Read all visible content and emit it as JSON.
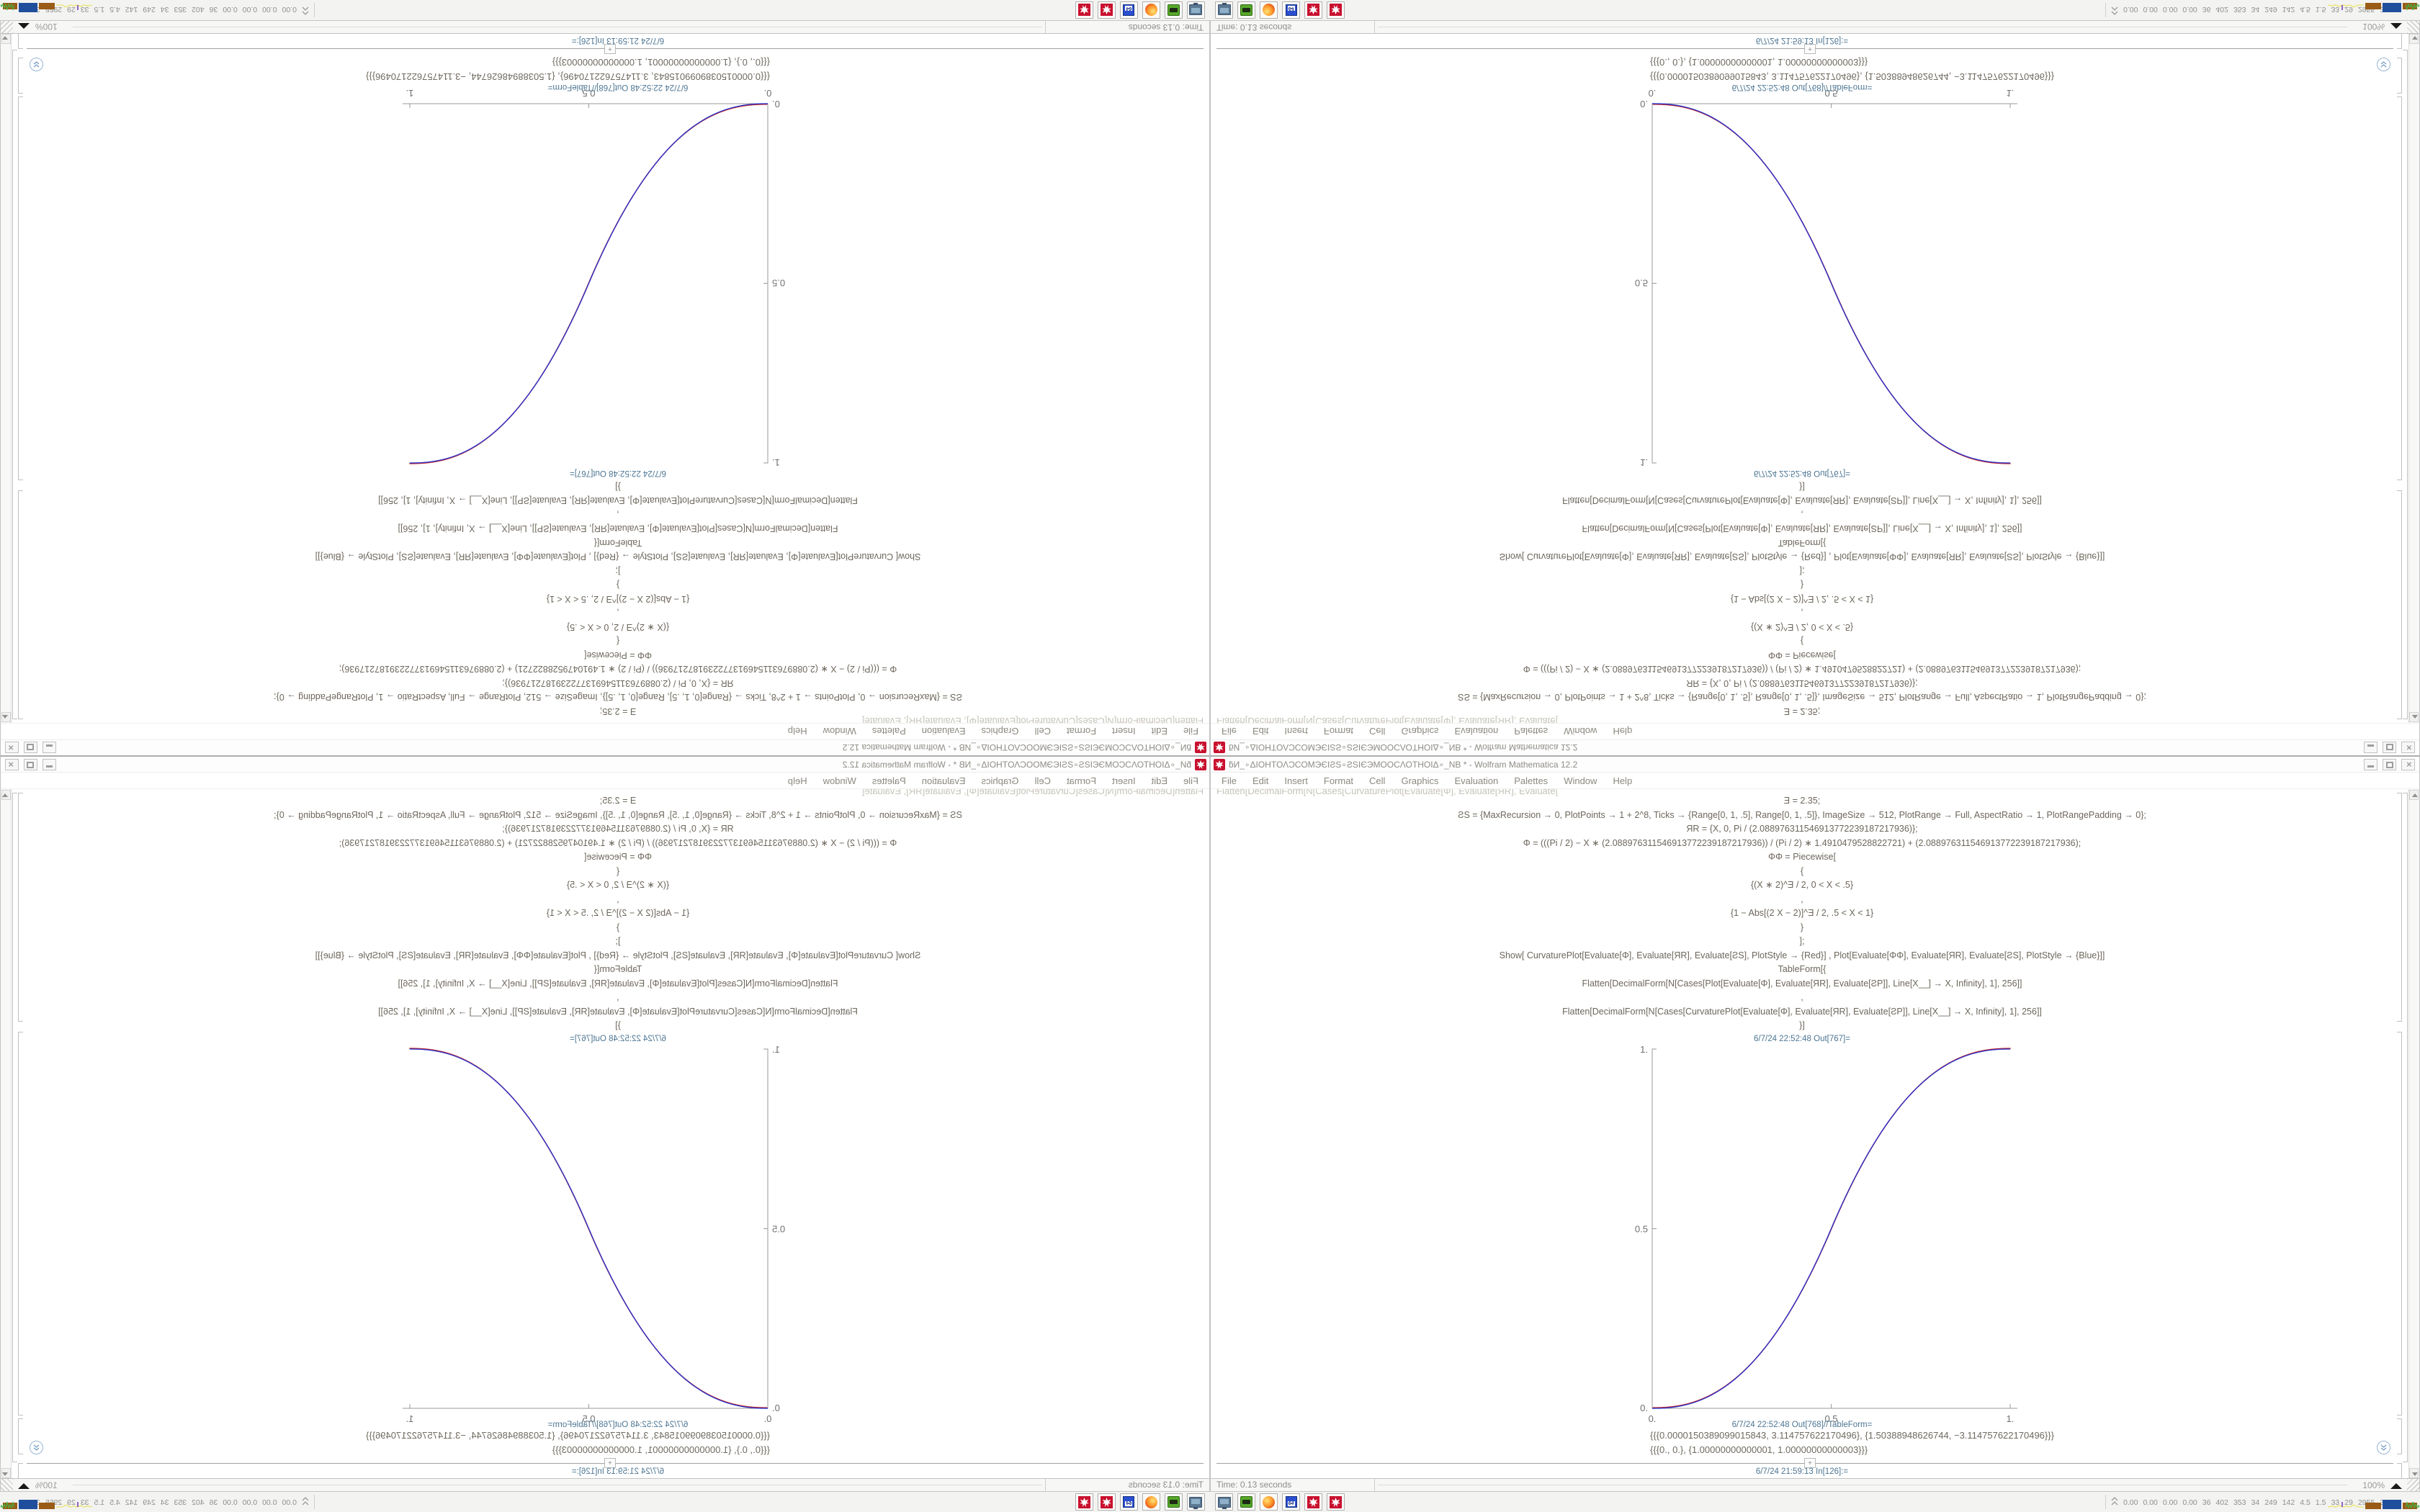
{
  "window": {
    "title": "ƃИ_∘ΔΙΟΗΤΟΛƆCOMЭЄΙƧS∘ƧSΙЄЭΜΟΟCΛΟΤΗΟΙΔ∘_NB * - Wolfram Mathematica 12.2",
    "spikey_icon": "mathematica-spikey",
    "menu": [
      "File",
      "Edit",
      "Insert",
      "Format",
      "Cell",
      "Graphics",
      "Evaluation",
      "Palettes",
      "Window",
      "Help"
    ],
    "minimize_glyph": "_",
    "maximize_glyph": "□",
    "close_glyph": "×"
  },
  "notebook": {
    "clipped_line_fragment": "Flatten[DecimalForm[N[Cases[CurvaturePlot[Evaluate[Φ], Evaluate[ЯR], Evaluate[ƧP]],",
    "input_lines": [
      "Ǝ = 2.35;",
      "ƧS = {MaxRecursion → 0, PlotPoints → 1 + 2^8, Ticks → {Range[0, 1, .5], Range[0, 1, .5]}, ImageSize → 512, PlotRange → Full, AspectRatio → 1, PlotRangePadding → 0};",
      "ЯR = {X, 0, Pi / (2.088976311546913772239187217936)};",
      "Φ = (((Pi / 2) − X ∗ (2.088976311546913772239187217936)) / (Pi / 2) ∗ 1.4910479528822721) + (2.088976311546913772239187217936);",
      "ΦΦ = Piecewise[",
      "{",
      "{(X ∗ 2)^Ǝ / 2, 0 < X < .5}",
      ",",
      "{1 − Abs[(2 X − 2)]^Ǝ / 2, .5 < X < 1}",
      "}",
      "];",
      "Show[  CurvaturePlot[Evaluate[Φ], Evaluate[ЯR], Evaluate[ƧS], PlotStyle → {Red}]  ,  Plot[Evaluate[ΦΦ], Evaluate[ЯR], Evaluate[ƧS], PlotStyle → {Blue}]]",
      "TableForm[{",
      "Flatten[DecimalForm[N[Cases[Plot[Evaluate[Φ], Evaluate[ЯR], Evaluate[ƧP]], Line[X__] → X, Infinity], 1], 256]]",
      ",",
      "Flatten[DecimalForm[N[Cases[CurvaturePlot[Evaluate[Φ], Evaluate[ЯR], Evaluate[ƧP]], Line[X__] → X, Infinity], 1], 256]]",
      "}]"
    ],
    "out_plot_label": "6/7/24 22:52:48 Out[767]=",
    "out_table_label": "6/7/24 22:52:48 Out[768]//TableForm=",
    "table_lines": [
      "{{{0.0000150389099015843, 3.114757622170496}, {1.50388948626744, −3.114757622170496}}}",
      "{{{0., 0.}, {1.00000000000001, 1.00000000000003}}}"
    ],
    "in_label": "6/7/24 21:59:13 In[126]:=",
    "plus_label": "+"
  },
  "chart_data": {
    "type": "line",
    "title": "",
    "xlabel": "",
    "ylabel": "",
    "x_range": [
      0,
      1
    ],
    "y_range": [
      0,
      1
    ],
    "x_ticks": [
      "0.",
      "0.5",
      "1."
    ],
    "y_ticks": [
      "0.",
      "0.5",
      "1."
    ],
    "grid": false,
    "legend": "none",
    "exponent": 2.35,
    "description": "Two nearly coincident smoothstep sigmoids: y=(2x)^2.35/2 for 0<x<0.5, y=1-(2-2x)^2.35/2 for 0.5<x<1",
    "series": [
      {
        "name": "CurvaturePlot (Red)",
        "color": "#d42a1e"
      },
      {
        "name": "Plot (Blue)",
        "color": "#2a30c8"
      }
    ],
    "samples": {
      "x": [
        0,
        0.05,
        0.1,
        0.15,
        0.2,
        0.25,
        0.3,
        0.35,
        0.4,
        0.45,
        0.5,
        0.55,
        0.6,
        0.65,
        0.7,
        0.75,
        0.8,
        0.85,
        0.9,
        0.95,
        1
      ],
      "y": [
        0,
        0.0022,
        0.0114,
        0.0295,
        0.0581,
        0.0981,
        0.1505,
        0.2163,
        0.2959,
        0.3903,
        0.5,
        0.6097,
        0.7041,
        0.7837,
        0.8495,
        0.9019,
        0.9419,
        0.9705,
        0.9886,
        0.9978,
        1
      ]
    }
  },
  "statusbar": {
    "time": "Time: 0.13 seconds",
    "zoom": "100%"
  },
  "taskbar": {
    "buttons": [
      "display-settings",
      "gpu-monitor",
      "firefox-browser",
      "disk-64-utility",
      "mathematica-window-1",
      "mathematica-window-2"
    ],
    "floppy_label": "64",
    "monitor_values": [
      "0.00",
      "0.00",
      "0.00",
      "0.00",
      "36",
      "402",
      "353",
      "34",
      "249",
      "142",
      "4.5",
      "1.5",
      "33",
      "29",
      "2955",
      "3811"
    ]
  }
}
